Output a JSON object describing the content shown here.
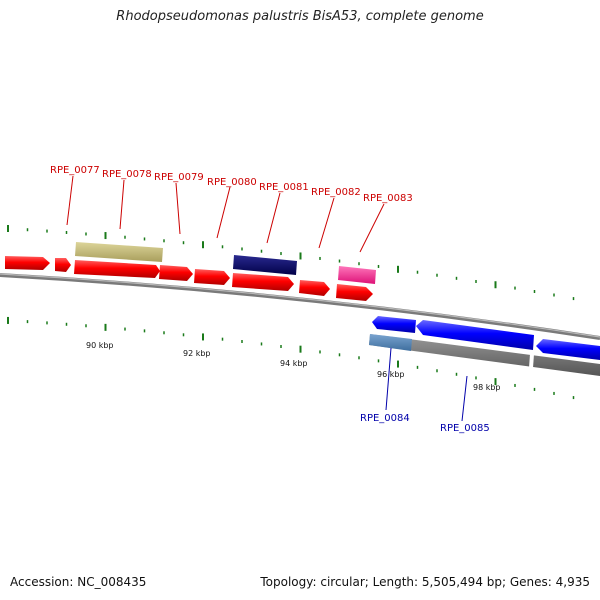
{
  "title": "Rhodopseudomonas palustris BisA53, complete genome",
  "footer": {
    "accession": "Accession: NC_008435",
    "summary": "Topology: circular; Length: 5,505,494 bp; Genes: 4,935"
  },
  "scale_labels": [
    "90 kbp",
    "92 kbp",
    "94 kbp",
    "96 kbp",
    "98 kbp"
  ],
  "gene_labels_forward": [
    "RPE_0077",
    "RPE_0078",
    "RPE_0079",
    "RPE_0080",
    "RPE_0081",
    "RPE_0082",
    "RPE_0083"
  ],
  "gene_labels_reverse": [
    "RPE_0084",
    "RPE_0085"
  ],
  "colors": {
    "forward_gene": "#ff0000",
    "reverse_gene": "#0000ff",
    "feature_khaki": "#c8bf7a",
    "feature_navy": "#0a0a6e",
    "feature_pink": "#ff3399",
    "feature_gray": "#777777",
    "backbone": "#888888",
    "tick": "#1a7a1a",
    "label_forward": "#cc0000",
    "label_reverse": "#0000aa"
  }
}
